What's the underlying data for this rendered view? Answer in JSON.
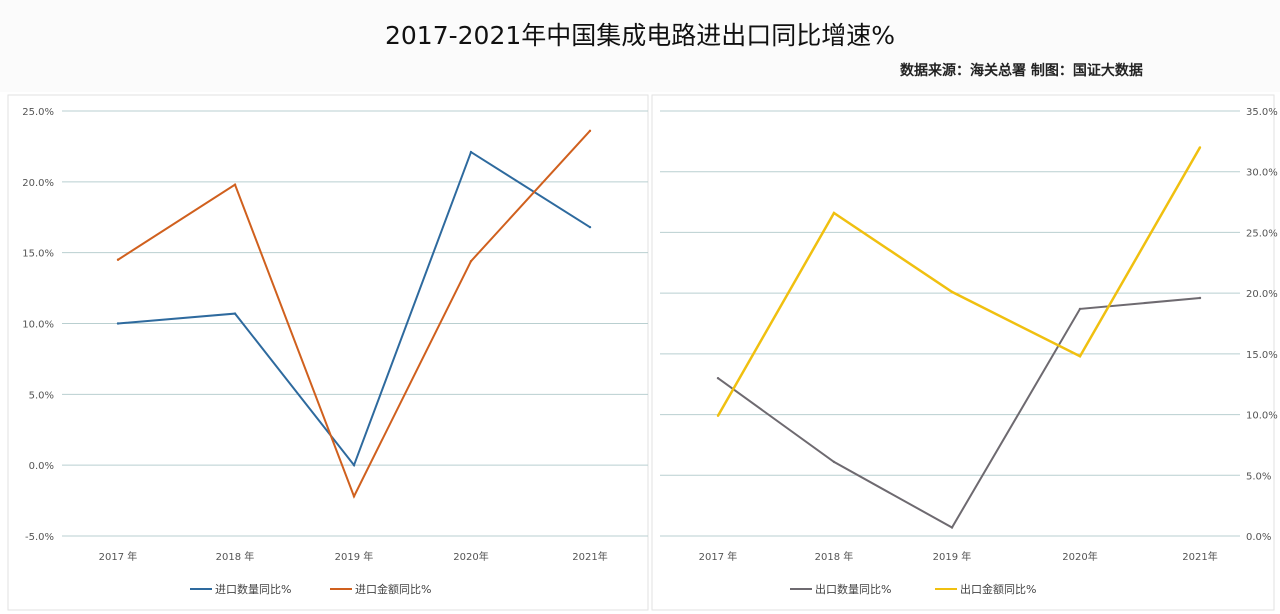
{
  "title": "2017-2021年中国集成电路进出口同比增速%",
  "source": "数据来源：海关总署  制图：国证大数据",
  "chart_data": [
    {
      "type": "line",
      "categories": [
        "2017 年",
        "2018 年",
        "2019 年",
        "2020年",
        "2021年"
      ],
      "ylim": [
        -5,
        25
      ],
      "yticks": [
        "-5.0%",
        "0.0%",
        "5.0%",
        "10.0%",
        "15.0%",
        "20.0%",
        "25.0%"
      ],
      "ytick_values": [
        -5,
        0,
        5,
        10,
        15,
        20,
        25
      ],
      "y_axis_side": "left",
      "grid": true,
      "legend": "bottom",
      "series": [
        {
          "name": "进口数量同比%",
          "color": "#2e6a9e",
          "values": [
            10.0,
            10.7,
            0.0,
            22.1,
            16.8
          ]
        },
        {
          "name": "进口金额同比%",
          "color": "#d0601e",
          "values": [
            14.5,
            19.8,
            -2.2,
            14.4,
            23.6
          ]
        }
      ]
    },
    {
      "type": "line",
      "categories": [
        "2017 年",
        "2018 年",
        "2019 年",
        "2020年",
        "2021年"
      ],
      "ylim": [
        0,
        35
      ],
      "yticks": [
        "0.0%",
        "5.0%",
        "10.0%",
        "15.0%",
        "20.0%",
        "25.0%",
        "30.0%",
        "35.0%"
      ],
      "ytick_values": [
        0,
        5,
        10,
        15,
        20,
        25,
        30,
        35
      ],
      "y_axis_side": "right",
      "grid": true,
      "legend": "bottom",
      "series": [
        {
          "name": "出口数量同比%",
          "color": "#6e6a70",
          "values": [
            13.0,
            6.1,
            0.7,
            18.7,
            19.6
          ]
        },
        {
          "name": "出口金额同比%",
          "color": "#f0c010",
          "values": [
            9.9,
            26.6,
            20.1,
            14.8,
            32.0
          ]
        }
      ]
    }
  ]
}
